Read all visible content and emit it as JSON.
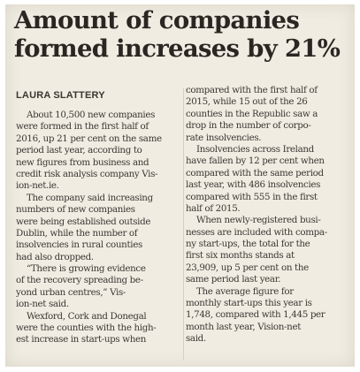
{
  "headline": {
    "line1": "Amount of companies",
    "line2": "formed increases by 21%"
  },
  "byline": "LAURA SLATTERY",
  "left_column": [
    {
      "text": "About 10,500 new companies",
      "indent": true
    },
    {
      "text": "were formed in the first half of",
      "indent": false
    },
    {
      "text": "2016, up 21 per cent on the same",
      "indent": false
    },
    {
      "text": "period last year, according to",
      "indent": false
    },
    {
      "text": "new figures from business and",
      "indent": false
    },
    {
      "text": "credit risk analysis company Vis-",
      "indent": false
    },
    {
      "text": "ion-net.ie.",
      "indent": false
    },
    {
      "text": "The company said increasing",
      "indent": true
    },
    {
      "text": "numbers of new companies",
      "indent": false
    },
    {
      "text": "were being established outside",
      "indent": false
    },
    {
      "text": "Dublin, while the number of",
      "indent": false
    },
    {
      "text": "insolvencies in rural counties",
      "indent": false
    },
    {
      "text": "had also dropped.",
      "indent": false
    },
    {
      "text": "“There is growing evidence",
      "indent": true
    },
    {
      "text": "of the recovery spreading be-",
      "indent": false
    },
    {
      "text": "yond urban centres,” Vis-",
      "indent": false
    },
    {
      "text": "ion-net said.",
      "indent": false
    },
    {
      "text": "Wexford, Cork and Donegal",
      "indent": true
    },
    {
      "text": "were the counties with the high-",
      "indent": false
    },
    {
      "text": "est increase in start-ups when",
      "indent": false
    }
  ],
  "right_column": [
    {
      "text": "compared with the first half of",
      "indent": false
    },
    {
      "text": "2015, while 15 out of the 26",
      "indent": false
    },
    {
      "text": "counties in the Republic saw a",
      "indent": false
    },
    {
      "text": "drop in the number of corpo-",
      "indent": false
    },
    {
      "text": "rate insolvencies.",
      "indent": false
    },
    {
      "text": "Insolvencies across Ireland",
      "indent": true
    },
    {
      "text": "have fallen by 12 per cent when",
      "indent": false
    },
    {
      "text": "compared with the same period",
      "indent": false
    },
    {
      "text": "last year, with 486 insolvencies",
      "indent": false
    },
    {
      "text": "compared with 555 in the first",
      "indent": false
    },
    {
      "text": "half of 2015.",
      "indent": false
    },
    {
      "text": "When newly-registered busi-",
      "indent": true
    },
    {
      "text": "nesses are included with compa-",
      "indent": false
    },
    {
      "text": "ny start-ups, the total for the",
      "indent": false
    },
    {
      "text": "first six months stands at",
      "indent": false
    },
    {
      "text": "23,909, up 5 per cent on the",
      "indent": false
    },
    {
      "text": "same period last year.",
      "indent": false
    },
    {
      "text": "The average figure for",
      "indent": true
    },
    {
      "text": "monthly start-ups this year is",
      "indent": false
    },
    {
      "text": "1,748, compared with 1,445 per",
      "indent": false
    },
    {
      "text": "month last year, Vision-net",
      "indent": false
    },
    {
      "text": "said.",
      "indent": false
    }
  ]
}
